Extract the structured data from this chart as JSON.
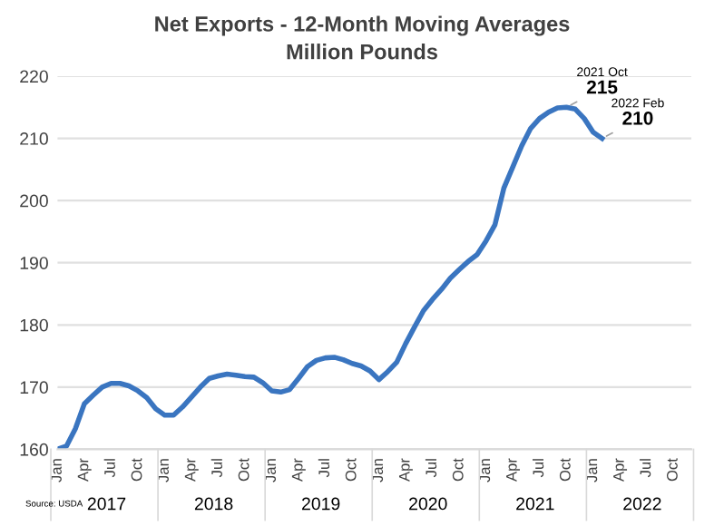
{
  "chart_data": {
    "type": "line",
    "title": "Net Exports - 12-Month Moving Averages\nMillion Pounds",
    "x": [
      "2017-01",
      "2017-02",
      "2017-03",
      "2017-04",
      "2017-05",
      "2017-06",
      "2017-07",
      "2017-08",
      "2017-09",
      "2017-10",
      "2017-11",
      "2017-12",
      "2018-01",
      "2018-02",
      "2018-03",
      "2018-04",
      "2018-05",
      "2018-06",
      "2018-07",
      "2018-08",
      "2018-09",
      "2018-10",
      "2018-11",
      "2018-12",
      "2019-01",
      "2019-02",
      "2019-03",
      "2019-04",
      "2019-05",
      "2019-06",
      "2019-07",
      "2019-08",
      "2019-09",
      "2019-10",
      "2019-11",
      "2019-12",
      "2020-01",
      "2020-02",
      "2020-03",
      "2020-04",
      "2020-05",
      "2020-06",
      "2020-07",
      "2020-08",
      "2020-09",
      "2020-10",
      "2020-11",
      "2020-12",
      "2021-01",
      "2021-02",
      "2021-03",
      "2021-04",
      "2021-05",
      "2021-06",
      "2021-07",
      "2021-08",
      "2021-09",
      "2021-10",
      "2021-11",
      "2021-12",
      "2022-01",
      "2022-02"
    ],
    "series": [
      {
        "color": "#3a75c0",
        "values": [
          160,
          160.5,
          163.3,
          167.3,
          168.7,
          170,
          170.6,
          170.6,
          170.2,
          169.4,
          168.3,
          166.5,
          165.5,
          165.5,
          166.8,
          168.4,
          170,
          171.4,
          171.8,
          172.1,
          171.9,
          171.7,
          171.6,
          170.7,
          169.4,
          169.2,
          169.6,
          171.4,
          173.3,
          174.3,
          174.7,
          174.8,
          174.4,
          173.8,
          173.4,
          172.6,
          171.2,
          172.5,
          174,
          177,
          179.7,
          182.3,
          184.1,
          185.7,
          187.5,
          188.9,
          190.2,
          191.3,
          193.5,
          196.1,
          202,
          205.4,
          208.8,
          211.6,
          213.2,
          214.2,
          214.9,
          215,
          214.7,
          213.2,
          211,
          210
        ],
        "value_labels": [
          null,
          null,
          null,
          null,
          null,
          null,
          null,
          null,
          null,
          null,
          null,
          null,
          null,
          null,
          null,
          null,
          null,
          null,
          null,
          null,
          null,
          null,
          null,
          null,
          null,
          null,
          null,
          null,
          null,
          null,
          null,
          null,
          null,
          null,
          null,
          null,
          null,
          null,
          null,
          null,
          null,
          null,
          null,
          null,
          null,
          null,
          null,
          null,
          null,
          null,
          null,
          null,
          null,
          null,
          null,
          null,
          null,
          "215",
          null,
          null,
          null,
          "210"
        ]
      }
    ],
    "xlim": [
      "2017-01",
      "2022-12"
    ],
    "xticks": [
      {
        "value": "2017-01",
        "label": "Jan"
      },
      {
        "value": "2017-04",
        "label": "Apr"
      },
      {
        "value": "2017-07",
        "label": "Jul"
      },
      {
        "value": "2017-10",
        "label": "Oct"
      },
      {
        "value": "2018-01",
        "label": "Jan"
      },
      {
        "value": "2018-04",
        "label": "Apr"
      },
      {
        "value": "2018-07",
        "label": "Jul"
      },
      {
        "value": "2018-10",
        "label": "Oct"
      },
      {
        "value": "2019-01",
        "label": "Jan"
      },
      {
        "value": "2019-04",
        "label": "Apr"
      },
      {
        "value": "2019-07",
        "label": "Jul"
      },
      {
        "value": "2019-10",
        "label": "Oct"
      },
      {
        "value": "2020-01",
        "label": "Jan"
      },
      {
        "value": "2020-04",
        "label": "Apr"
      },
      {
        "value": "2020-07",
        "label": "Jul"
      },
      {
        "value": "2020-10",
        "label": "Oct"
      },
      {
        "value": "2021-01",
        "label": "Jan"
      },
      {
        "value": "2021-04",
        "label": "Apr"
      },
      {
        "value": "2021-07",
        "label": "Jul"
      },
      {
        "value": "2021-10",
        "label": "Oct"
      },
      {
        "value": "2022-01",
        "label": "Jan"
      },
      {
        "value": "2022-04",
        "label": "Apr"
      },
      {
        "value": "2022-07",
        "label": "Jul"
      },
      {
        "value": "2022-10",
        "label": "Oct"
      }
    ],
    "ylim": [
      160,
      220
    ],
    "yticks": [
      160,
      170,
      180,
      190,
      200,
      210,
      220
    ],
    "grid": "y",
    "legend": false,
    "marker": "none",
    "line_style": "solid",
    "annotations": [
      {
        "text": "2021 Oct",
        "x": "2021-10",
        "y": 215
      },
      {
        "text": "2022 Feb",
        "x": "2022-02",
        "y": 210
      },
      "2017",
      "2018",
      "2019",
      "2020",
      "2021",
      "2022",
      "Source: USDA"
    ]
  }
}
